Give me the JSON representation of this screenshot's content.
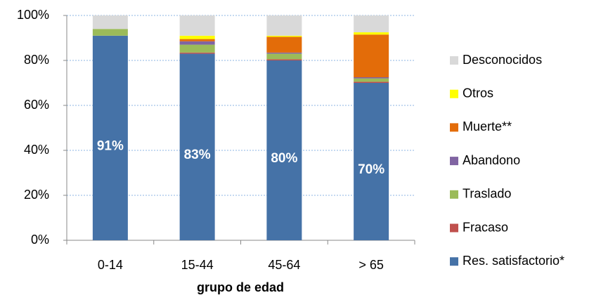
{
  "chart_data": {
    "type": "stacked_bar",
    "x_label": "grupo de edad",
    "categories": [
      "0-14",
      "15-44",
      "45-64",
      "> 65"
    ],
    "series": [
      {
        "name": "Res. satisfactorio*",
        "color": "#4572a7",
        "values": [
          91,
          83,
          80,
          70
        ],
        "value_labels": [
          "91%",
          "83%",
          "80%",
          "70%"
        ]
      },
      {
        "name": "Fracaso",
        "color": "#c0504d",
        "values": [
          0,
          0.5,
          0.5,
          0.5
        ]
      },
      {
        "name": "Traslado",
        "color": "#9bbb59",
        "values": [
          3,
          3.5,
          2.5,
          1.5
        ]
      },
      {
        "name": "Abandono",
        "color": "#8064a2",
        "values": [
          0,
          1.5,
          0.5,
          0.5
        ]
      },
      {
        "name": "Muerte**",
        "color": "#e36c09",
        "values": [
          0,
          1,
          7,
          19
        ]
      },
      {
        "name": "Otros",
        "color": "#ffff00",
        "values": [
          0,
          1.5,
          0.5,
          1
        ]
      },
      {
        "name": "Desconocidos",
        "color": "#d9d9d9",
        "values": [
          6,
          9,
          9,
          7.5
        ]
      }
    ],
    "ylim": [
      0,
      100
    ],
    "yticks": [
      {
        "value": 0,
        "label": "0%"
      },
      {
        "value": 20,
        "label": "20%"
      },
      {
        "value": 40,
        "label": "40%"
      },
      {
        "value": 60,
        "label": "60%"
      },
      {
        "value": 80,
        "label": "80%"
      },
      {
        "value": 100,
        "label": "100%"
      }
    ],
    "grid": true
  }
}
